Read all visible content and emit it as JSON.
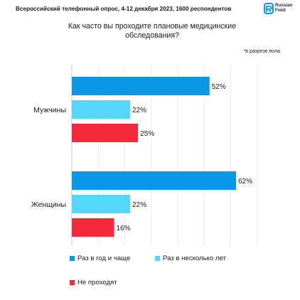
{
  "header": {
    "subtitle": "Всероссийский телефонный опрос, 4-12 декабря 2023, 1600 респондентов",
    "logo_line1": "Russian",
    "logo_line2": "Field",
    "logo_icon": "russian-field-logo-icon"
  },
  "question": "Как часто вы проходите плановые медицинские\nобследования?",
  "note": "*в разрезе пола",
  "chart_data": {
    "type": "bar",
    "orientation": "horizontal",
    "categories": [
      "Мужчины",
      "Женщины"
    ],
    "series": [
      {
        "name": "Раз в год и чаще",
        "color": "#0a98e6",
        "values": [
          52,
          62
        ],
        "labels": [
          "52%",
          "62%"
        ]
      },
      {
        "name": "Раз в несколько лет",
        "color": "#55d6fb",
        "values": [
          22,
          22
        ],
        "labels": [
          "22%",
          "22%"
        ]
      },
      {
        "name": "Не проходят",
        "color": "#f5293a",
        "values": [
          25,
          16
        ],
        "labels": [
          "25%",
          "16%"
        ]
      }
    ],
    "xlim": [
      0,
      70
    ],
    "unit": "%",
    "grid": true,
    "legend_position": "bottom"
  }
}
